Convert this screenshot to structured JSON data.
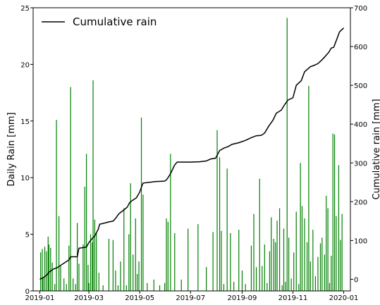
{
  "chart_data": {
    "type": "bar",
    "legend": {
      "label": "Cumulative rain",
      "placement": "top-left"
    },
    "left_axis": {
      "label": "Daily Rain [mm]",
      "lim": [
        0,
        25
      ],
      "ticks": [
        0,
        5,
        10,
        15,
        20,
        25
      ],
      "tick_labels": [
        "0",
        "5",
        "10",
        "15",
        "20",
        "25"
      ]
    },
    "right_axis": {
      "label": "Cumulative rain [mm]",
      "lim": [
        -30,
        700
      ],
      "ticks": [
        0,
        100,
        200,
        300,
        400,
        500,
        600,
        700
      ],
      "tick_labels": [
        "0",
        "100",
        "200",
        "300",
        "400",
        "500",
        "600",
        "700"
      ]
    },
    "x_axis": {
      "lim": [
        "2018-12-24",
        "2020-01-09"
      ],
      "ticks": [
        "2019-01-01",
        "2019-03-01",
        "2019-05-01",
        "2019-07-01",
        "2019-09-01",
        "2019-11-01",
        "2020-01-01"
      ],
      "tick_labels": [
        "2019-01",
        "2019-03",
        "2019-05",
        "2019-07",
        "2019-09",
        "2019-11",
        "2020-01"
      ]
    },
    "grid": false,
    "colors": {
      "bars": "#008000",
      "line": "#000000"
    },
    "series": [
      {
        "type": "bar",
        "axis": "left",
        "x": [
          "2019-01-02",
          "2019-01-04",
          "2019-01-05",
          "2019-01-07",
          "2019-01-09",
          "2019-01-11",
          "2019-01-12",
          "2019-01-14",
          "2019-01-16",
          "2019-01-19",
          "2019-01-21",
          "2019-01-24",
          "2019-01-26",
          "2019-01-30",
          "2019-02-02",
          "2019-02-05",
          "2019-02-07",
          "2019-02-10",
          "2019-02-13",
          "2019-02-15",
          "2019-02-17",
          "2019-02-22",
          "2019-02-24",
          "2019-02-26",
          "2019-02-28",
          "2019-03-01",
          "2019-03-03",
          "2019-03-05",
          "2019-03-06",
          "2019-03-08",
          "2019-03-10",
          "2019-03-13",
          "2019-03-18",
          "2019-03-25",
          "2019-03-30",
          "2019-04-02",
          "2019-04-05",
          "2019-04-08",
          "2019-04-12",
          "2019-04-15",
          "2019-04-18",
          "2019-04-20",
          "2019-04-23",
          "2019-04-26",
          "2019-04-28",
          "2019-04-30",
          "2019-05-03",
          "2019-05-05",
          "2019-05-10",
          "2019-05-18",
          "2019-05-25",
          "2019-05-31",
          "2019-06-02",
          "2019-06-04",
          "2019-06-07",
          "2019-06-12",
          "2019-06-20",
          "2019-06-28",
          "2019-07-10",
          "2019-07-20",
          "2019-07-28",
          "2019-08-02",
          "2019-08-05",
          "2019-08-07",
          "2019-08-10",
          "2019-08-14",
          "2019-08-18",
          "2019-08-22",
          "2019-08-28",
          "2019-09-01",
          "2019-09-05",
          "2019-09-12",
          "2019-09-15",
          "2019-09-18",
          "2019-09-22",
          "2019-09-25",
          "2019-09-28",
          "2019-10-01",
          "2019-10-04",
          "2019-10-06",
          "2019-10-09",
          "2019-10-11",
          "2019-10-13",
          "2019-10-16",
          "2019-10-19",
          "2019-10-21",
          "2019-10-23",
          "2019-10-25",
          "2019-10-27",
          "2019-10-30",
          "2019-11-02",
          "2019-11-05",
          "2019-11-08",
          "2019-11-10",
          "2019-11-12",
          "2019-11-15",
          "2019-11-18",
          "2019-11-20",
          "2019-11-22",
          "2019-11-25",
          "2019-11-28",
          "2019-12-01",
          "2019-12-04",
          "2019-12-06",
          "2019-12-09",
          "2019-12-11",
          "2019-12-13",
          "2019-12-15",
          "2019-12-17",
          "2019-12-19",
          "2019-12-21",
          "2019-12-23",
          "2019-12-26",
          "2019-12-28",
          "2019-12-30"
        ],
        "values": [
          3.4,
          3.7,
          1.2,
          3.9,
          3.5,
          4.8,
          4.1,
          3.8,
          2.5,
          0.6,
          15.1,
          6.6,
          2.2,
          1.1,
          0.6,
          4.0,
          18.0,
          1.1,
          0.6,
          6.0,
          2.4,
          4.1,
          9.2,
          12.1,
          2.3,
          0.7,
          5.0,
          4.3,
          18.6,
          6.3,
          5.1,
          1.6,
          0.5,
          4.6,
          4.5,
          1.8,
          0.5,
          2.6,
          7.3,
          0.5,
          5.0,
          9.5,
          3.2,
          6.4,
          1.5,
          2.6,
          15.3,
          8.5,
          0.7,
          1.0,
          0.5,
          0.7,
          6.4,
          6.1,
          12.1,
          5.1,
          1.0,
          5.5,
          5.9,
          2.1,
          5.2,
          14.2,
          11.8,
          5.3,
          0.6,
          10.8,
          5.1,
          0.8,
          5.4,
          1.8,
          0.6,
          4.0,
          6.8,
          2.1,
          9.9,
          2.2,
          4.1,
          0.7,
          3.5,
          6.5,
          4.6,
          4.3,
          6.2,
          7.3,
          0.5,
          5.5,
          0.8,
          24.1,
          4.7,
          1.1,
          3.4,
          7.0,
          0.6,
          11.3,
          7.5,
          6.4,
          4.3,
          18.1,
          2.6,
          5.4,
          1.3,
          3.0,
          4.2,
          4.7,
          3.2,
          8.4,
          7.3,
          0.7,
          3.1,
          13.9,
          13.8,
          6.6,
          11.1,
          4.5,
          6.8
        ]
      },
      {
        "type": "line",
        "axis": "right",
        "name": "Cumulative rain",
        "x": [
          "2019-01-01",
          "2019-01-05",
          "2019-01-09",
          "2019-01-12",
          "2019-01-17",
          "2019-01-22",
          "2019-01-24",
          "2019-02-05",
          "2019-02-07",
          "2019-02-15",
          "2019-02-17",
          "2019-02-26",
          "2019-03-01",
          "2019-03-05",
          "2019-03-08",
          "2019-03-12",
          "2019-03-14",
          "2019-03-20",
          "2019-03-25",
          "2019-03-30",
          "2019-04-02",
          "2019-04-06",
          "2019-04-11",
          "2019-04-16",
          "2019-04-19",
          "2019-04-22",
          "2019-04-27",
          "2019-05-01",
          "2019-05-03",
          "2019-05-05",
          "2019-05-20",
          "2019-05-31",
          "2019-06-02",
          "2019-06-04",
          "2019-06-07",
          "2019-06-12",
          "2019-06-15",
          "2019-07-01",
          "2019-07-12",
          "2019-07-20",
          "2019-07-25",
          "2019-07-31",
          "2019-08-02",
          "2019-08-05",
          "2019-08-10",
          "2019-08-15",
          "2019-08-20",
          "2019-08-28",
          "2019-09-05",
          "2019-09-12",
          "2019-09-18",
          "2019-09-24",
          "2019-09-28",
          "2019-10-03",
          "2019-10-08",
          "2019-10-12",
          "2019-10-18",
          "2019-10-22",
          "2019-10-26",
          "2019-11-01",
          "2019-11-05",
          "2019-11-09",
          "2019-11-11",
          "2019-11-15",
          "2019-11-22",
          "2019-11-27",
          "2019-12-01",
          "2019-12-06",
          "2019-12-09",
          "2019-12-14",
          "2019-12-17",
          "2019-12-20",
          "2019-12-23",
          "2019-12-27",
          "2020-01-01"
        ],
        "values": [
          0,
          4,
          10,
          18,
          26,
          30,
          33,
          50,
          58,
          58,
          80,
          83,
          95,
          105,
          112,
          128,
          142,
          145,
          148,
          150,
          157,
          169,
          177,
          186,
          198,
          203,
          210,
          225,
          237,
          248,
          252,
          253,
          256,
          262,
          272,
          295,
          302,
          302,
          303,
          305,
          310,
          312,
          320,
          332,
          338,
          342,
          348,
          352,
          358,
          365,
          370,
          371,
          377,
          395,
          410,
          428,
          436,
          450,
          462,
          468,
          500,
          508,
          512,
          535,
          548,
          552,
          556,
          566,
          573,
          585,
          596,
          598,
          615,
          638,
          648
        ]
      }
    ]
  }
}
